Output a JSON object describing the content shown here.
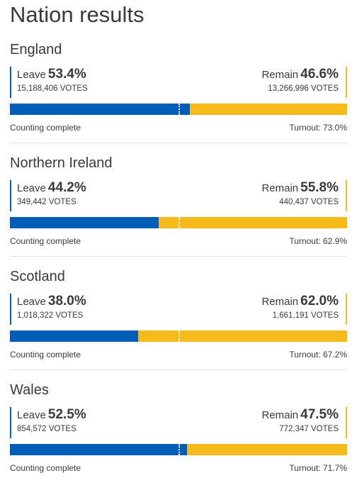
{
  "page": {
    "title": "Nation results"
  },
  "colors": {
    "leave": "#005eb8",
    "remain": "#f6bb1b",
    "text": "#3a3a3a",
    "divider": "#e0e0e0"
  },
  "nations": [
    {
      "name": "England",
      "leave_label": "Leave",
      "leave_pct": "53.4%",
      "leave_votes": "15,188,406 VOTES",
      "remain_label": "Remain",
      "remain_pct": "46.6%",
      "remain_votes": "13,266,996 VOTES",
      "leave_share": 53.4,
      "status": "Counting complete",
      "turnout": "Turnout: 73.0%"
    },
    {
      "name": "Northern Ireland",
      "leave_label": "Leave",
      "leave_pct": "44.2%",
      "leave_votes": "349,442 VOTES",
      "remain_label": "Remain",
      "remain_pct": "55.8%",
      "remain_votes": "440,437 VOTES",
      "leave_share": 44.2,
      "status": "Counting complete",
      "turnout": "Turnout: 62.9%"
    },
    {
      "name": "Scotland",
      "leave_label": "Leave",
      "leave_pct": "38.0%",
      "leave_votes": "1,018,322 VOTES",
      "remain_label": "Remain",
      "remain_pct": "62.0%",
      "remain_votes": "1,661,191 VOTES",
      "leave_share": 38.0,
      "status": "Counting complete",
      "turnout": "Turnout: 67.2%"
    },
    {
      "name": "Wales",
      "leave_label": "Leave",
      "leave_pct": "52.5%",
      "leave_votes": "854,572 VOTES",
      "remain_label": "Remain",
      "remain_pct": "47.5%",
      "remain_votes": "772,347 VOTES",
      "leave_share": 52.5,
      "status": "Counting complete",
      "turnout": "Turnout: 71.7%"
    }
  ]
}
